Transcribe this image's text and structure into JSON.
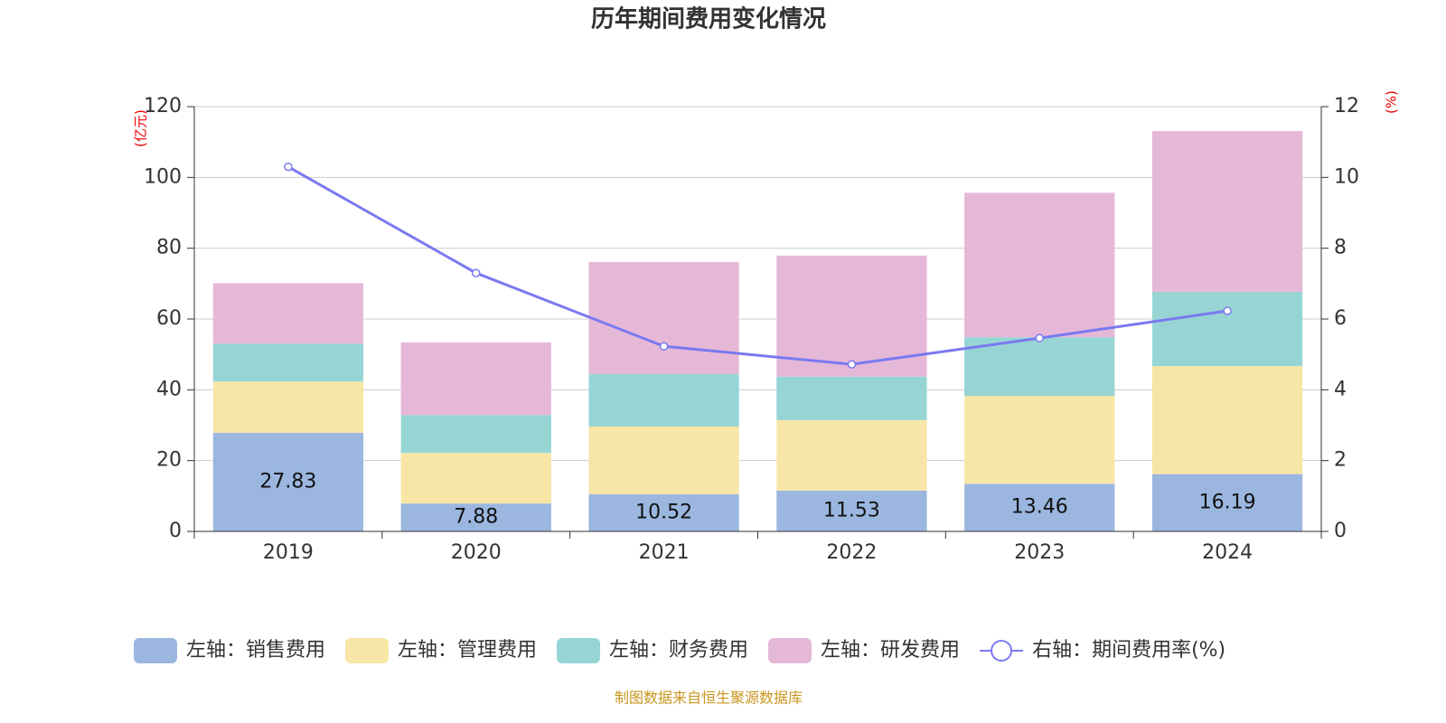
{
  "chart_data": {
    "type": "bar",
    "title": "历年期间费用变化情况",
    "y_unit_label": "(亿元)",
    "y2_unit_label": "(%)",
    "categories": [
      "2019",
      "2020",
      "2021",
      "2022",
      "2023",
      "2024"
    ],
    "series": [
      {
        "name": "左轴：销售费用",
        "color": "#9bb7e0",
        "values": [
          27.83,
          7.88,
          10.52,
          11.53,
          13.46,
          16.19
        ],
        "show_labels": true
      },
      {
        "name": "左轴：管理费用",
        "color": "#f7e6a6",
        "values": [
          14.5,
          14.3,
          19.1,
          19.9,
          24.8,
          30.5
        ]
      },
      {
        "name": "左轴：财务费用",
        "color": "#97d5d5",
        "values": [
          10.7,
          10.7,
          14.8,
          12.3,
          16.6,
          21.0
        ]
      },
      {
        "name": "左轴：研发费用",
        "color": "#e6b8d8",
        "values": [
          17.1,
          20.5,
          31.7,
          34.2,
          40.8,
          45.4
        ]
      },
      {
        "name": "右轴：期间费用率(%)",
        "color": "#7a7af0",
        "type": "line",
        "axis": "y2",
        "values": [
          10.3,
          7.3,
          5.23,
          4.72,
          5.46,
          6.23
        ]
      }
    ],
    "ylim": [
      0,
      120
    ],
    "yticks": [
      0,
      20,
      40,
      60,
      80,
      100,
      120
    ],
    "y2lim": [
      0,
      12
    ],
    "y2ticks": [
      0,
      2,
      4,
      6,
      8,
      10,
      12
    ],
    "grid": true,
    "legend": "bottom",
    "source": "制图数据来自恒生聚源数据库"
  }
}
